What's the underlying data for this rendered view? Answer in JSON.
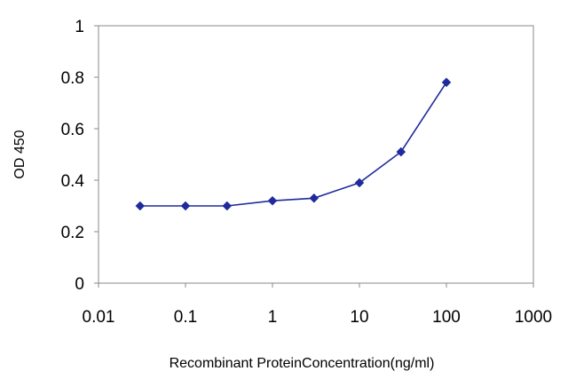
{
  "chart_data": {
    "type": "line",
    "title": "",
    "xlabel": "Recombinant ProteinConcentration(ng/ml)",
    "ylabel": "OD 450",
    "x_scale": "log",
    "xlim": [
      0.01,
      1000
    ],
    "ylim": [
      0,
      1
    ],
    "x_ticks": [
      0.01,
      0.1,
      1,
      10,
      100,
      1000
    ],
    "x_tick_labels": [
      "0.01",
      "0.1",
      "1",
      "10",
      "100",
      "1000"
    ],
    "y_ticks": [
      0,
      0.2,
      0.4,
      0.6,
      0.8,
      1
    ],
    "y_tick_labels": [
      "0",
      "0.2",
      "0.4",
      "0.6",
      "0.8",
      "1"
    ],
    "grid": false,
    "legend": "none",
    "series": [
      {
        "color": "#1f2a9c",
        "marker": "diamond",
        "x": [
          0.03,
          0.1,
          0.3,
          1,
          3,
          10,
          30,
          100
        ],
        "y": [
          0.3,
          0.3,
          0.3,
          0.32,
          0.33,
          0.39,
          0.51,
          0.78
        ]
      }
    ]
  }
}
